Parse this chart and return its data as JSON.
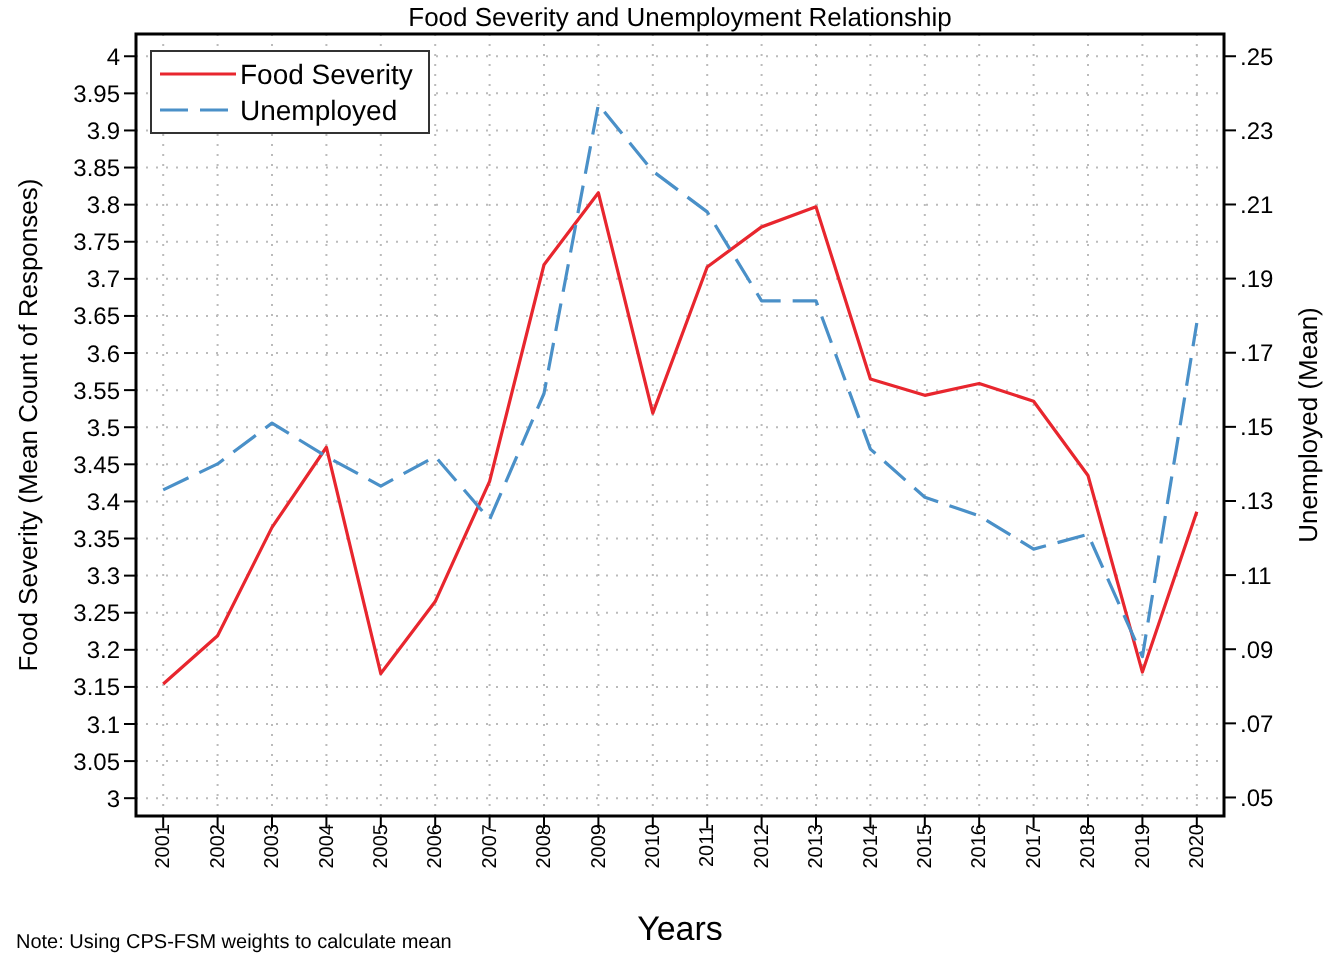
{
  "chart_data": {
    "type": "line",
    "title": "Food Severity and Unemployment Relationship",
    "xlabel": "Years",
    "ylabel": "Food Severity (Mean Count of Responses)",
    "y2label": "Unemployed (Mean)",
    "annotations": [
      "Note: Using CPS-FSM weights to calculate mean"
    ],
    "categories": [
      "2001",
      "2002",
      "2003",
      "2004",
      "2005",
      "2006",
      "2007",
      "2008",
      "2009",
      "2010",
      "2011",
      "2012",
      "2013",
      "2014",
      "2015",
      "2016",
      "2017",
      "2018",
      "2019",
      "2020"
    ],
    "series": [
      {
        "name": "Food Severity",
        "color": "#e8262e",
        "line_style": "solid",
        "values": [
          3.154,
          3.219,
          3.365,
          3.473,
          3.168,
          3.265,
          3.427,
          3.719,
          3.816,
          3.519,
          3.716,
          3.77,
          3.797,
          3.565,
          3.543,
          3.559,
          3.535,
          3.435,
          3.17,
          3.386
        ]
      },
      {
        "name": "Unemployed",
        "color": "#4a90c8",
        "line_style": "dashed",
        "axis": "y2",
        "values": [
          0.133,
          0.14,
          0.151,
          0.142,
          0.134,
          0.142,
          0.125,
          0.159,
          0.237,
          0.219,
          0.208,
          0.184,
          0.184,
          0.144,
          0.131,
          0.126,
          0.117,
          0.121,
          0.088,
          0.178
        ]
      }
    ],
    "ylim": [
      2.976,
      4.03
    ],
    "yticks": [
      3,
      3.05,
      3.1,
      3.15,
      3.2,
      3.25,
      3.3,
      3.35,
      3.4,
      3.45,
      3.5,
      3.55,
      3.6,
      3.65,
      3.7,
      3.75,
      3.8,
      3.85,
      3.9,
      3.95,
      4
    ],
    "y2lim": [
      0.045,
      0.256
    ],
    "y2ticks": [
      {
        "value": 0.05,
        "label": ".05"
      },
      {
        "value": 0.07,
        "label": ".07"
      },
      {
        "value": 0.09,
        "label": ".09"
      },
      {
        "value": 0.11,
        "label": ".11"
      },
      {
        "value": 0.13,
        "label": ".13"
      },
      {
        "value": 0.15,
        "label": ".15"
      },
      {
        "value": 0.17,
        "label": ".17"
      },
      {
        "value": 0.19,
        "label": ".19"
      },
      {
        "value": 0.21,
        "label": ".21"
      },
      {
        "value": 0.23,
        "label": ".23"
      },
      {
        "value": 0.25,
        "label": ".25"
      }
    ],
    "grid": true,
    "legend": "top left",
    "marker": "none"
  }
}
